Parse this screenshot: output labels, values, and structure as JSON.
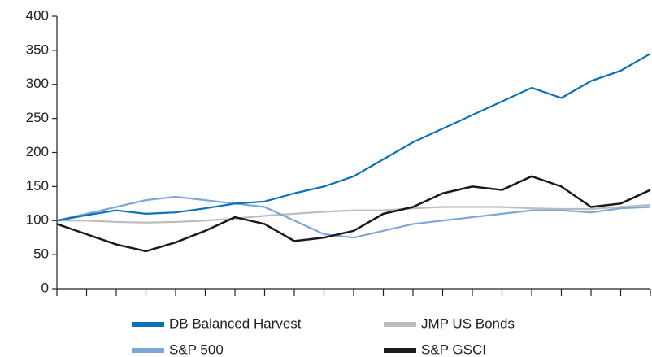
{
  "chart_data": {
    "type": "line",
    "categories": [
      null,
      null,
      null,
      null,
      null,
      null,
      null,
      null,
      null,
      null,
      null,
      null,
      null,
      null,
      null,
      null,
      null,
      null,
      null,
      null,
      null
    ],
    "series": [
      {
        "name": "DB Balanced Harvest",
        "color": "#0a70b8",
        "values": [
          100,
          108,
          115,
          110,
          112,
          118,
          125,
          128,
          140,
          150,
          165,
          190,
          215,
          235,
          255,
          275,
          295,
          280,
          305,
          320,
          345
        ]
      },
      {
        "name": "S&P 500",
        "color": "#7ba7d9",
        "values": [
          100,
          110,
          120,
          130,
          135,
          130,
          125,
          120,
          100,
          80,
          75,
          85,
          95,
          100,
          105,
          110,
          115,
          115,
          112,
          118,
          120
        ]
      },
      {
        "name": "JMP US Bonds",
        "color": "#bcbcbc",
        "values": [
          100,
          100,
          98,
          97,
          98,
          100,
          103,
          107,
          110,
          113,
          115,
          115,
          118,
          120,
          120,
          120,
          118,
          117,
          117,
          120,
          123
        ]
      },
      {
        "name": "S&P GSCI",
        "color": "#1a1a1a",
        "values": [
          95,
          80,
          65,
          55,
          68,
          85,
          105,
          95,
          70,
          75,
          85,
          110,
          120,
          140,
          150,
          145,
          165,
          150,
          120,
          125,
          145
        ]
      }
    ],
    "ylim": [
      0,
      400
    ],
    "yticks": [
      0,
      50,
      100,
      150,
      200,
      250,
      300,
      350,
      400
    ],
    "grid": false
  }
}
